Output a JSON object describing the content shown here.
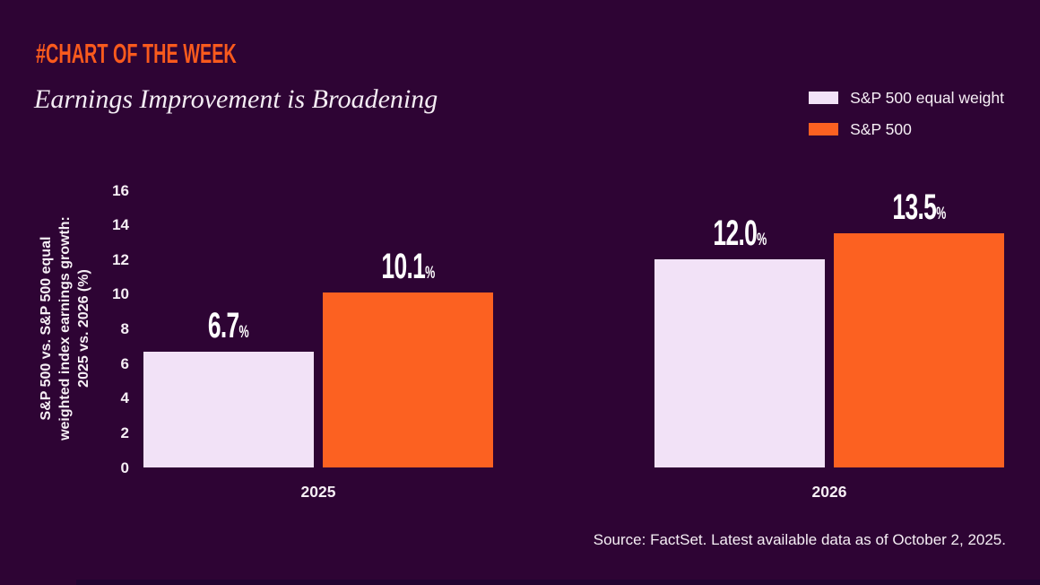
{
  "kicker": "#CHART OF THE WEEK",
  "title": "Earnings Improvement is Broadening",
  "legend": [
    {
      "label": "S&P 500 equal weight",
      "color": "#F2E2F7"
    },
    {
      "label": "S&P 500",
      "color": "#FC6121"
    }
  ],
  "source": "Source: FactSet. Latest available data as of October 2, 2025.",
  "colors": {
    "background": "#2E0434",
    "kicker_orange": "#F95A1D",
    "bar_orange": "#FC6121",
    "bar_lavender": "#F2E2F7",
    "text_light": "#F6EFF5"
  },
  "chart_data": {
    "type": "bar",
    "categories": [
      "2025",
      "2026"
    ],
    "series": [
      {
        "name": "S&P 500 equal weight",
        "color": "#F2E2F7",
        "values": [
          6.7,
          12.0
        ],
        "labels": [
          "6.7",
          "12.0"
        ]
      },
      {
        "name": "S&P 500",
        "color": "#FC6121",
        "values": [
          10.1,
          13.5
        ],
        "labels": [
          "10.1",
          "13.5"
        ]
      }
    ],
    "title": "Earnings Improvement is Broadening",
    "xlabel": "",
    "ylabel": "S&P 500 vs. S&P 500 equal weighted index earnings growth: 2025 vs. 2026 (%)",
    "ylabel_lines": [
      "S&P 500 vs. S&P 500 equal",
      "weighted index earnings growth:",
      "2025 vs. 2026 (%)"
    ],
    "ylim": [
      0,
      16
    ],
    "ytick_step": 2,
    "value_suffix": "%",
    "grid": false,
    "legend_position": "top-right"
  }
}
